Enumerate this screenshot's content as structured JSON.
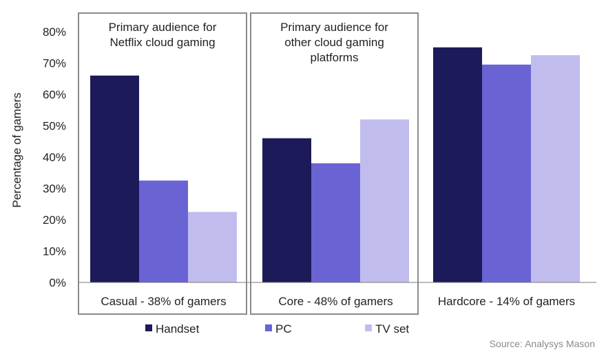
{
  "chart_data": {
    "type": "bar",
    "ylabel": "Percentage of gamers",
    "xlabel": "",
    "ylim": [
      0,
      80
    ],
    "yticks": [
      "0%",
      "10%",
      "20%",
      "30%",
      "40%",
      "50%",
      "60%",
      "70%",
      "80%"
    ],
    "categories": [
      "Casual - 38% of gamers",
      "Core - 48% of gamers",
      "Hardcore - 14% of gamers"
    ],
    "series": [
      {
        "name": "Handset",
        "color": "#1c1a58",
        "values": [
          66,
          46,
          75
        ]
      },
      {
        "name": "PC",
        "color": "#6a63d4",
        "values": [
          32.5,
          38,
          69.5
        ]
      },
      {
        "name": "TV set",
        "color": "#c0bdee",
        "values": [
          22.5,
          52,
          72.5
        ]
      }
    ],
    "annotations": [
      {
        "text": [
          "Primary audience for",
          "Netflix cloud gaming"
        ],
        "category_index": 0
      },
      {
        "text": [
          "Primary audience for",
          "other cloud gaming",
          "platforms"
        ],
        "category_index": 1
      }
    ],
    "legend_position": "bottom",
    "grid": false
  },
  "source": "Source: Analysys Mason"
}
